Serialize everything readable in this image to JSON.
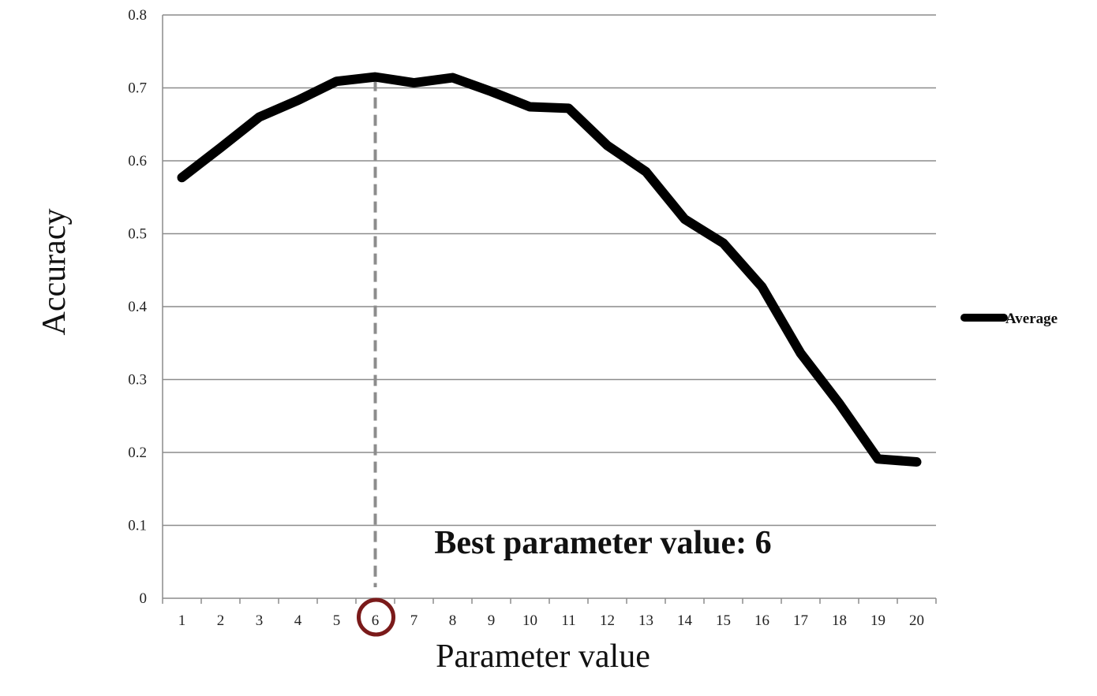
{
  "chart_data": {
    "type": "line",
    "title": "",
    "xlabel": "Parameter value",
    "ylabel": "Accuracy",
    "x": [
      1,
      2,
      3,
      4,
      5,
      6,
      7,
      8,
      9,
      10,
      11,
      12,
      13,
      14,
      15,
      16,
      17,
      18,
      19,
      20
    ],
    "x_tick_labels": [
      "1",
      "2",
      "3",
      "4",
      "5",
      "6",
      "7",
      "8",
      "9",
      "10",
      "11",
      "12",
      "13",
      "14",
      "15",
      "16",
      "17",
      "18",
      "19",
      "20"
    ],
    "y_tick_labels": [
      "0",
      "0.1",
      "0.2",
      "0.3",
      "0.4",
      "0.5",
      "0.6",
      "0.7",
      "0.8"
    ],
    "ylim": [
      0,
      0.8
    ],
    "grid": "horizontal",
    "legend_position": "right",
    "series": [
      {
        "name": "Average",
        "values": [
          0.577,
          0.618,
          0.66,
          0.683,
          0.709,
          0.715,
          0.707,
          0.714,
          0.695,
          0.674,
          0.672,
          0.621,
          0.585,
          0.52,
          0.487,
          0.427,
          0.336,
          0.267,
          0.191,
          0.187
        ]
      }
    ],
    "annotation": {
      "text": "Best parameter value: 6",
      "x": 6,
      "y": 0.715
    },
    "colors": {
      "line": "#000000",
      "grid": "#8c8c8c",
      "dashed_marker": "#8c8c8c",
      "highlight_circle": "#7a1a1a"
    }
  }
}
